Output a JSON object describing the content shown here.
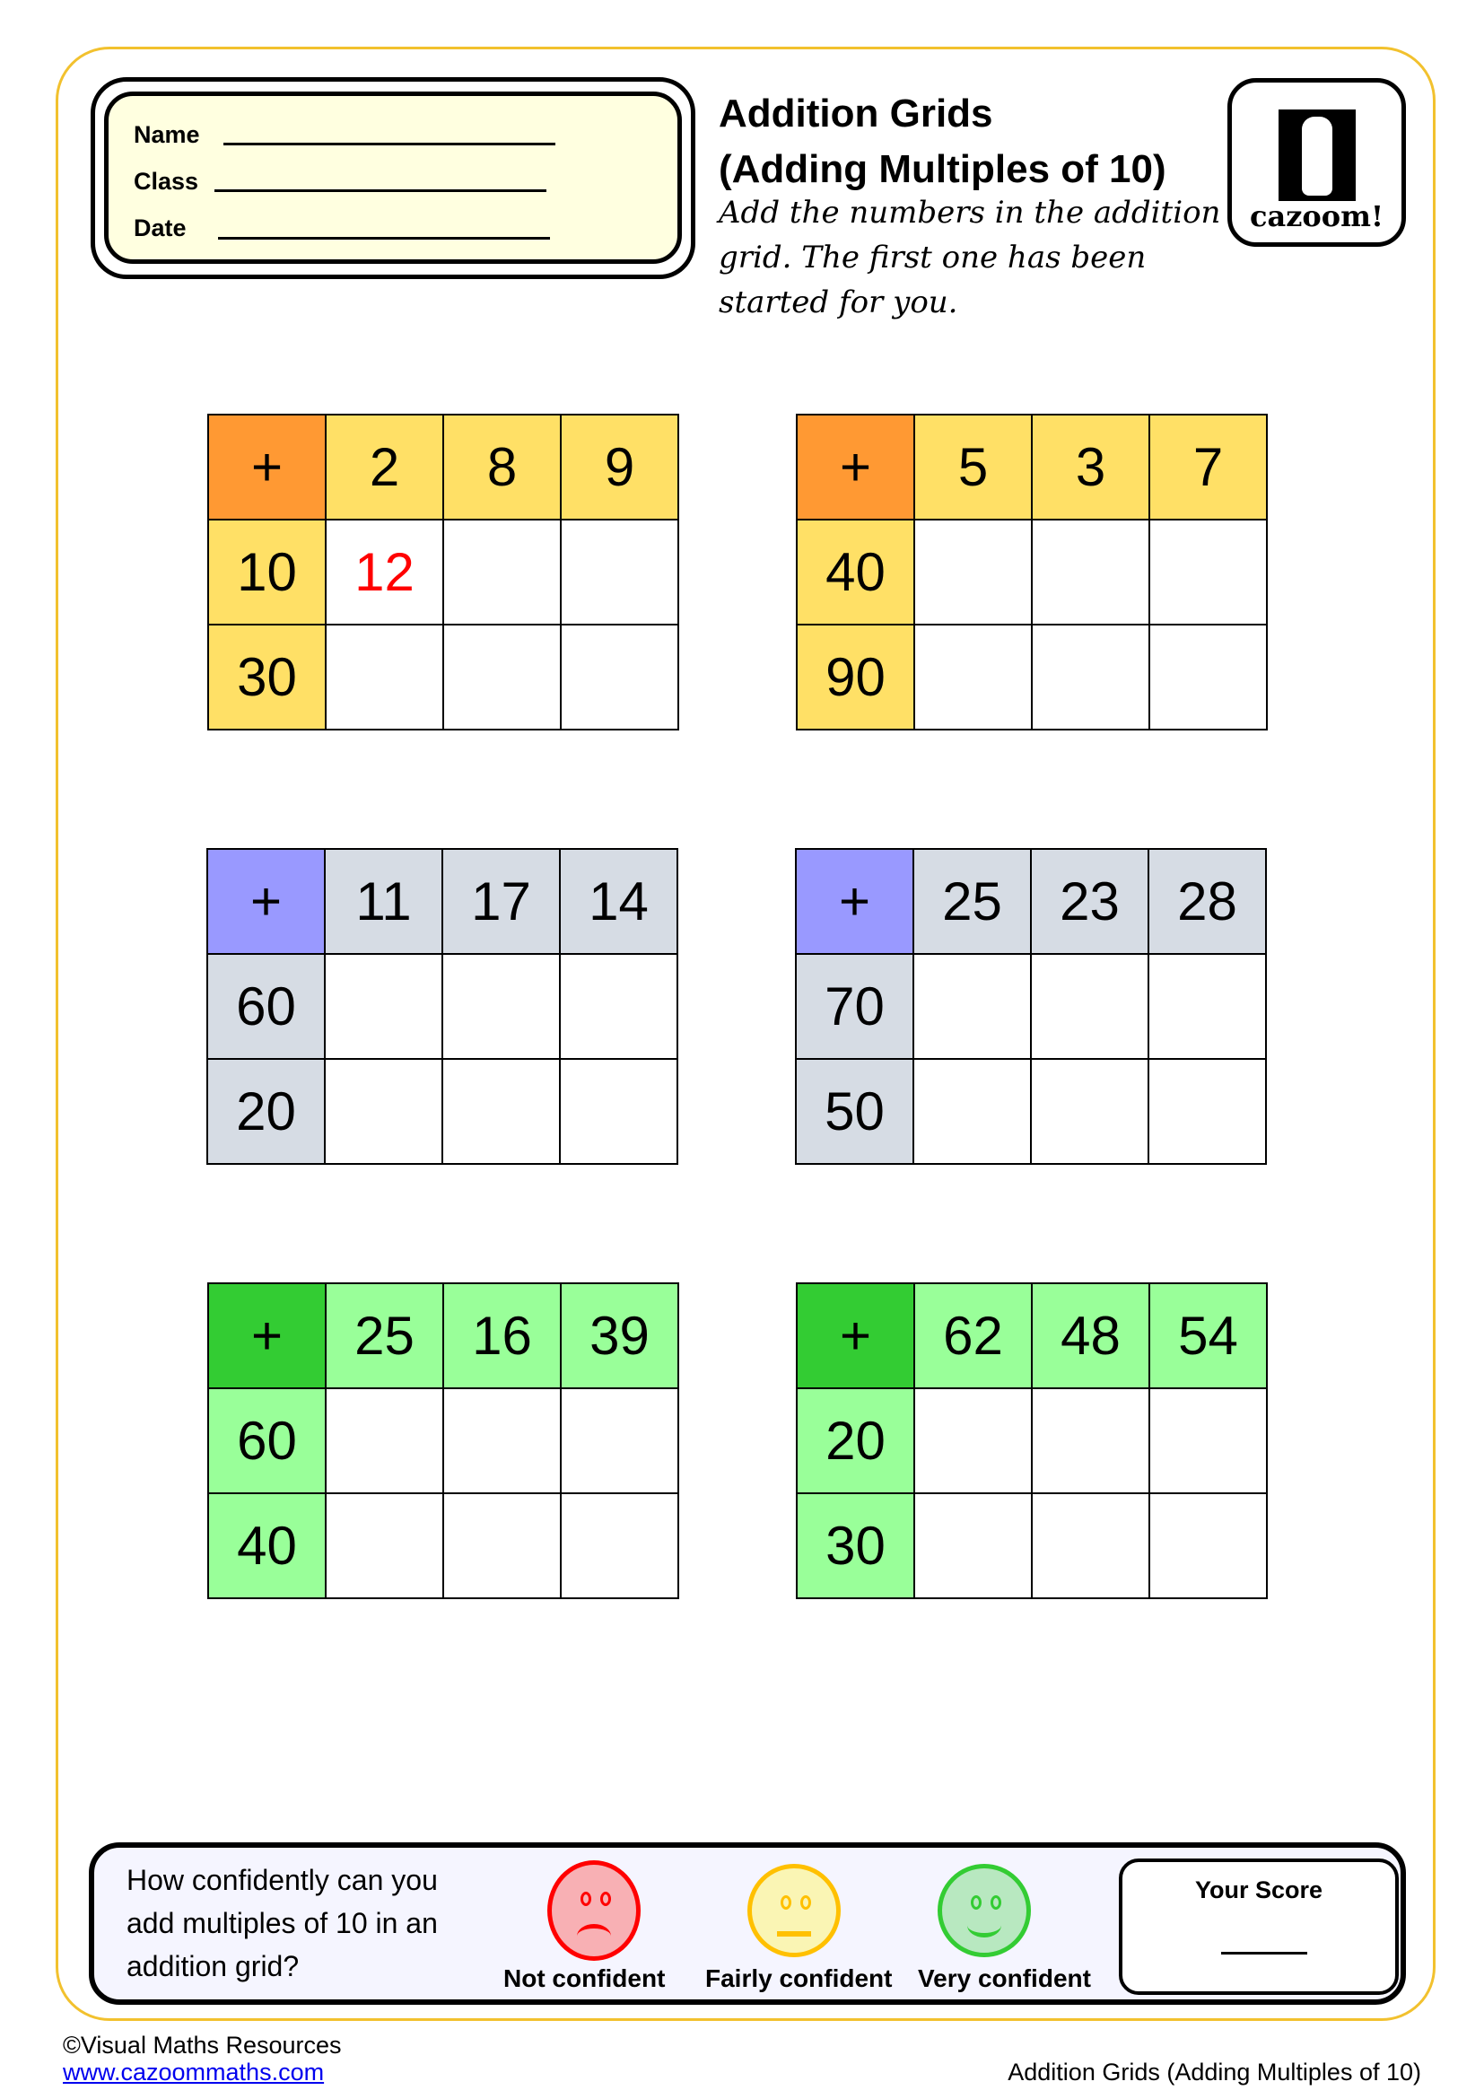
{
  "header": {
    "fields": [
      {
        "label": "Name"
      },
      {
        "label": "Class"
      },
      {
        "label": "Date"
      }
    ],
    "title_line1": "Addition Grids",
    "title_line2": "(Adding Multiples of 10)",
    "instructions": "Add the numbers in the addition grid. The first one has been started for you.",
    "logo_text": "cazoom!"
  },
  "grids": [
    {
      "operator": "+",
      "columns": [
        "2",
        "8",
        "9"
      ],
      "rows": [
        "10",
        "30"
      ],
      "answers": [
        [
          "12",
          "",
          ""
        ],
        [
          "",
          "",
          ""
        ]
      ],
      "corner_color": "#FF9933",
      "header_color": "#FFE066"
    },
    {
      "operator": "+",
      "columns": [
        "5",
        "3",
        "7"
      ],
      "rows": [
        "40",
        "90"
      ],
      "answers": [
        [
          "",
          "",
          ""
        ],
        [
          "",
          "",
          ""
        ]
      ],
      "corner_color": "#FF9933",
      "header_color": "#FFE066"
    },
    {
      "operator": "+",
      "columns": [
        "11",
        "17",
        "14"
      ],
      "rows": [
        "60",
        "20"
      ],
      "answers": [
        [
          "",
          "",
          ""
        ],
        [
          "",
          "",
          ""
        ]
      ],
      "corner_color": "#9999FF",
      "header_color": "#D6DCE4"
    },
    {
      "operator": "+",
      "columns": [
        "25",
        "23",
        "28"
      ],
      "rows": [
        "70",
        "50"
      ],
      "answers": [
        [
          "",
          "",
          ""
        ],
        [
          "",
          "",
          ""
        ]
      ],
      "corner_color": "#9999FF",
      "header_color": "#D6DCE4"
    },
    {
      "operator": "+",
      "columns": [
        "25",
        "16",
        "39"
      ],
      "rows": [
        "60",
        "40"
      ],
      "answers": [
        [
          "",
          "",
          ""
        ],
        [
          "",
          "",
          ""
        ]
      ],
      "corner_color": "#33CC33",
      "header_color": "#99FF99"
    },
    {
      "operator": "+",
      "columns": [
        "62",
        "48",
        "54"
      ],
      "rows": [
        "20",
        "30"
      ],
      "answers": [
        [
          "",
          "",
          ""
        ],
        [
          "",
          "",
          ""
        ]
      ],
      "corner_color": "#33CC33",
      "header_color": "#99FF99"
    }
  ],
  "confidence": {
    "question": "How confidently can you add multiples of 10 in an addition grid?",
    "options": [
      {
        "label": "Not confident",
        "icon": "sad-face-icon",
        "color": "#FF0000",
        "fill": "#F8B0B4"
      },
      {
        "label": "Fairly confident",
        "icon": "neutral-face-icon",
        "color": "#FFC000",
        "fill": "#FAF5B4"
      },
      {
        "label": "Very confident",
        "icon": "happy-face-icon",
        "color": "#33CC33",
        "fill": "#B8E8C0"
      }
    ],
    "score_label": "Your Score"
  },
  "footer": {
    "copyright": "©Visual Maths Resources",
    "url": "www.cazoommaths.com",
    "title": "Addition Grids (Adding Multiples of 10)"
  }
}
